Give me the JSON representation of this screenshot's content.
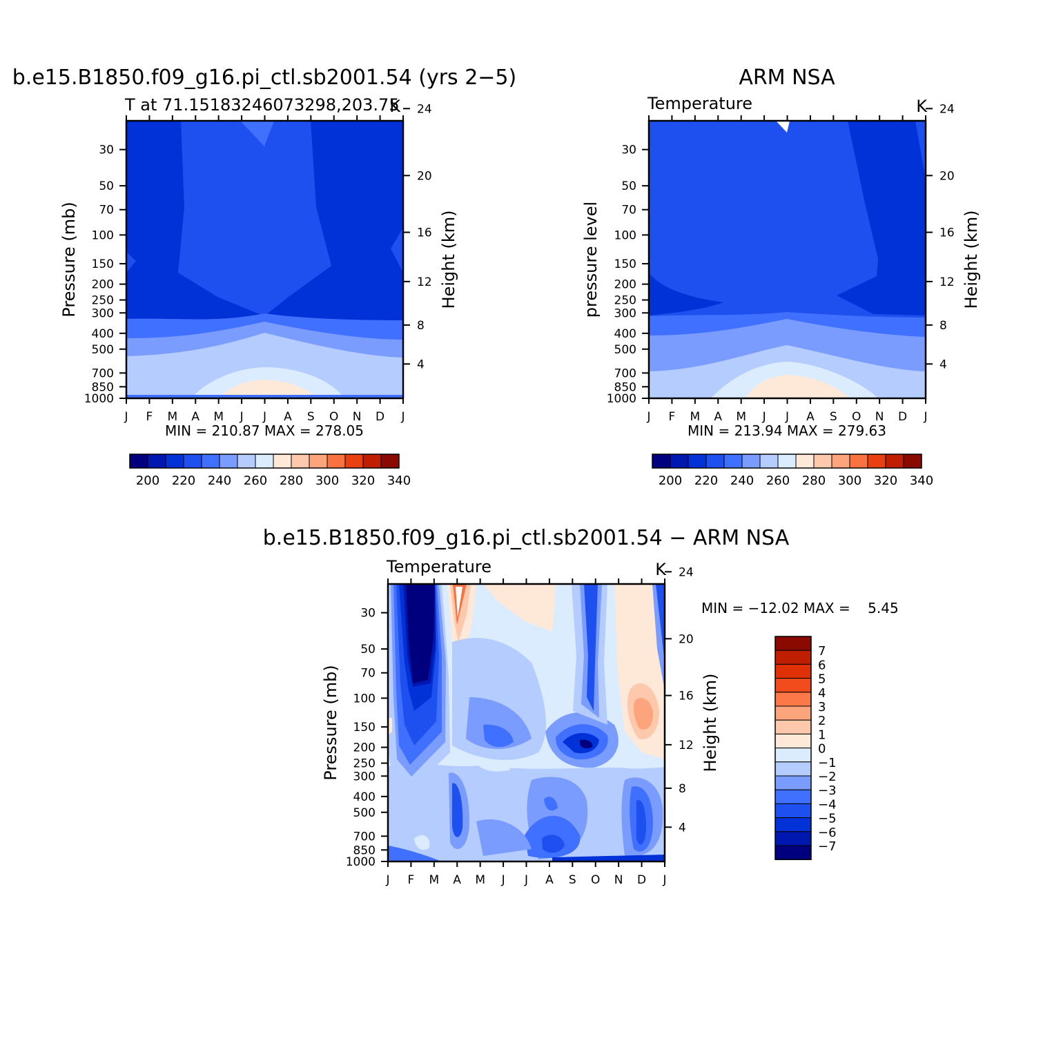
{
  "chart_data": [
    {
      "type": "heatmap",
      "title": "b.e15.B1850.f09_g16.pi_ctl.sb2001.54 (yrs 2−5)",
      "subtitle": "T at 71.15183246073298,203.75",
      "units": "K",
      "ylabel": "Pressure (mb)",
      "ylabel_right": "Height (km)",
      "x_ticks": [
        "J",
        "F",
        "M",
        "A",
        "M",
        "J",
        "J",
        "A",
        "S",
        "O",
        "N",
        "D",
        "J"
      ],
      "y_ticks": [
        30,
        50,
        70,
        100,
        150,
        200,
        250,
        300,
        400,
        500,
        700,
        850,
        1000
      ],
      "y_range": [
        20,
        1000
      ],
      "y_scale": "log",
      "height_ticks": [
        24,
        20,
        16,
        12,
        8,
        4
      ],
      "stats_text": "MIN = 210.87  MAX = 278.05",
      "min": 210.87,
      "max": 278.05,
      "colorbar": {
        "orientation": "horizontal",
        "labels": [
          "200",
          "220",
          "240",
          "260",
          "280",
          "300",
          "320",
          "340"
        ],
        "colors": [
          "#00007f",
          "#0018b0",
          "#0032d8",
          "#1e50f0",
          "#4070ff",
          "#7a9cff",
          "#b4ccff",
          "#dcecff",
          "#fee8d8",
          "#fdc8ac",
          "#fca47c",
          "#fa7240",
          "#e84010",
          "#c01e00",
          "#8a0a00"
        ]
      }
    },
    {
      "type": "heatmap",
      "title": "ARM NSA",
      "subtitle": "Temperature",
      "units": "K",
      "ylabel": "pressure level",
      "ylabel_right": "Height (km)",
      "x_ticks": [
        "J",
        "F",
        "M",
        "A",
        "M",
        "J",
        "J",
        "A",
        "S",
        "O",
        "N",
        "D",
        "J"
      ],
      "y_ticks": [
        30,
        50,
        70,
        100,
        150,
        200,
        250,
        300,
        400,
        500,
        700,
        850,
        1000
      ],
      "y_range": [
        20,
        1000
      ],
      "y_scale": "log",
      "height_ticks": [
        24,
        20,
        16,
        12,
        8,
        4
      ],
      "stats_text": "MIN = 213.94  MAX = 279.63",
      "min": 213.94,
      "max": 279.63,
      "colorbar": {
        "orientation": "horizontal",
        "labels": [
          "200",
          "220",
          "240",
          "260",
          "280",
          "300",
          "320",
          "340"
        ],
        "colors": [
          "#00007f",
          "#0018b0",
          "#0032d8",
          "#1e50f0",
          "#4070ff",
          "#7a9cff",
          "#b4ccff",
          "#dcecff",
          "#fee8d8",
          "#fdc8ac",
          "#fca47c",
          "#fa7240",
          "#e84010",
          "#c01e00",
          "#8a0a00"
        ]
      }
    },
    {
      "type": "heatmap",
      "title": "b.e15.B1850.f09_g16.pi_ctl.sb2001.54 − ARM NSA",
      "subtitle": "Temperature",
      "units": "K",
      "ylabel": "Pressure (mb)",
      "ylabel_right": "Height (km)",
      "x_ticks": [
        "J",
        "F",
        "M",
        "A",
        "M",
        "J",
        "J",
        "A",
        "S",
        "O",
        "N",
        "D",
        "J"
      ],
      "y_ticks": [
        30,
        50,
        70,
        100,
        150,
        200,
        250,
        300,
        400,
        500,
        700,
        850,
        1000
      ],
      "y_range": [
        20,
        1000
      ],
      "y_scale": "log",
      "height_ticks": [
        24,
        20,
        16,
        12,
        8,
        4
      ],
      "stats_text": "MIN = −12.02 MAX =    5.45",
      "min": -12.02,
      "max": 5.45,
      "colorbar": {
        "orientation": "vertical",
        "labels": [
          "7",
          "6",
          "5",
          "4",
          "3",
          "2",
          "1",
          "0",
          "−1",
          "−2",
          "−3",
          "−4",
          "−5",
          "−6",
          "−7"
        ],
        "colors": [
          "#8a0a00",
          "#c01e00",
          "#e03008",
          "#f04c1c",
          "#fc7848",
          "#fca47c",
          "#fdc8ac",
          "#fee8d8",
          "#dcecff",
          "#b4ccff",
          "#7a9cff",
          "#4070ff",
          "#1e50f0",
          "#0032d8",
          "#0018b0",
          "#00007f"
        ]
      }
    }
  ],
  "palette": {
    "t_levels": [
      "#00007f",
      "#0018b0",
      "#0032d8",
      "#1e50f0",
      "#4070ff",
      "#7a9cff",
      "#b4ccff",
      "#dcecff",
      "#fee8d8",
      "#fdc8ac",
      "#fca47c",
      "#fa7240"
    ],
    "diff_levels": {
      "le-7": "#00007f",
      "-7": "#0018b0",
      "-6": "#0032d8",
      "-5": "#1e50f0",
      "-4": "#4070ff",
      "-3": "#7a9cff",
      "-2": "#b4ccff",
      "-1": "#dcecff",
      "0": "#fee8d8",
      "1": "#fdc8ac",
      "2": "#fca47c",
      "3": "#f04c1c"
    }
  }
}
